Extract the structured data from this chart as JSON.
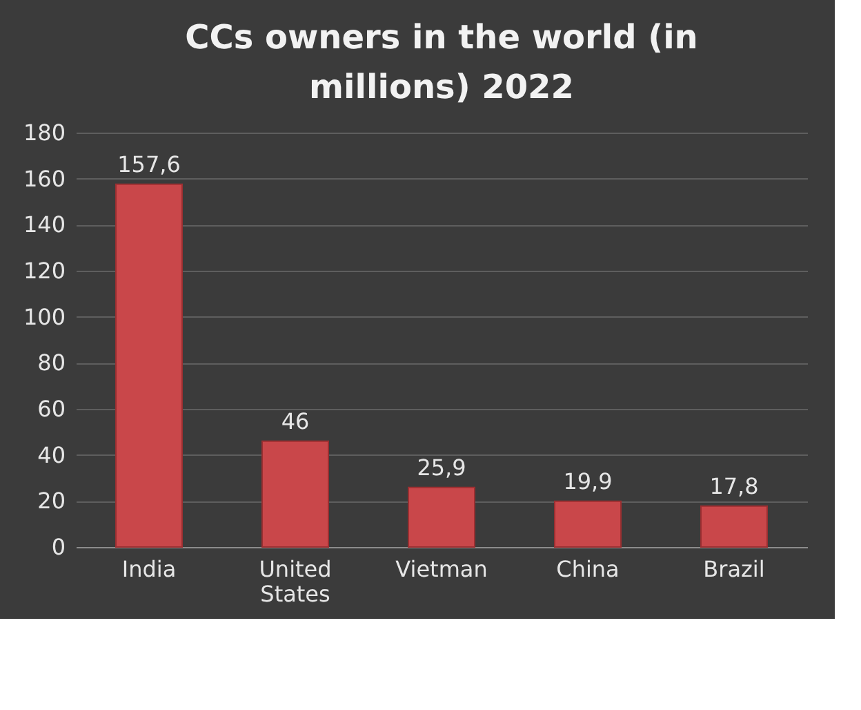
{
  "chart_data": {
    "type": "bar",
    "title": "CCs owners in the world (in millions) 2022",
    "categories": [
      "India",
      "United States",
      "Vietman",
      "China",
      "Brazil"
    ],
    "values": [
      157.6,
      46,
      25.9,
      19.9,
      17.8
    ],
    "value_labels": [
      "157,6",
      "46",
      "25,9",
      "19,9",
      "17,8"
    ],
    "color": "#c9474a",
    "ylim": [
      0,
      180
    ],
    "yticks": [
      0,
      20,
      40,
      60,
      80,
      100,
      120,
      140,
      160,
      180
    ],
    "grid": "y"
  }
}
